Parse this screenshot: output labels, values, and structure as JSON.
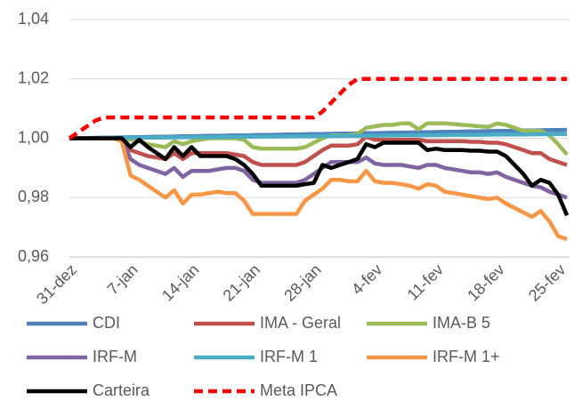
{
  "chart_data": {
    "type": "line",
    "categories": [
      "31-dez",
      null,
      null,
      null,
      null,
      null,
      null,
      "7-jan",
      null,
      null,
      null,
      null,
      null,
      null,
      "14-jan",
      null,
      null,
      null,
      null,
      null,
      null,
      "21-jan",
      null,
      null,
      null,
      null,
      null,
      null,
      "28-jan",
      null,
      null,
      null,
      null,
      null,
      null,
      "4-fev",
      null,
      null,
      null,
      null,
      null,
      null,
      "11-fev",
      null,
      null,
      null,
      null,
      null,
      null,
      "18-fev",
      null,
      null,
      null,
      null,
      null,
      null,
      "25-fev",
      null
    ],
    "ylim": [
      0.96,
      1.04
    ],
    "yticks": [
      {
        "value": 0.96,
        "label": "0,96"
      },
      {
        "value": 0.98,
        "label": "0,98"
      },
      {
        "value": 1.0,
        "label": "1,00"
      },
      {
        "value": 1.02,
        "label": "1,02"
      },
      {
        "value": 1.04,
        "label": "1,04"
      }
    ],
    "grid": true,
    "legend": "bottom",
    "series": [
      {
        "name": "CDI",
        "color": "#4f81bd",
        "values": [
          1.0,
          1.00005,
          1.0001,
          1.00015,
          1.0002,
          1.00025,
          1.0003,
          1.00035,
          1.0004,
          1.00045,
          1.0005,
          1.00055,
          1.0006,
          1.00065,
          1.0007,
          1.00075,
          1.0008,
          1.00085,
          1.0009,
          1.00095,
          1.001,
          1.00105,
          1.0011,
          1.00115,
          1.0012,
          1.00125,
          1.0013,
          1.00135,
          1.0014,
          1.00145,
          1.0015,
          1.00155,
          1.0016,
          1.00165,
          1.0017,
          1.00175,
          1.0018,
          1.00185,
          1.0019,
          1.00195,
          1.002,
          1.00205,
          1.0021,
          1.00215,
          1.0022,
          1.00225,
          1.0023,
          1.00235,
          1.0024,
          1.00245,
          1.0025,
          1.00255,
          1.0026,
          1.00265,
          1.0027,
          1.00275,
          1.0028,
          1.00285
        ]
      },
      {
        "name": "IMA - Geral",
        "color": "#c0504d",
        "values": [
          1.0,
          1.0,
          1.0,
          1.0,
          1.0,
          1.0,
          1.0,
          0.996,
          0.995,
          0.994,
          0.9935,
          0.993,
          0.995,
          0.993,
          0.995,
          0.995,
          0.995,
          0.995,
          0.995,
          0.9945,
          0.994,
          0.992,
          0.991,
          0.991,
          0.991,
          0.991,
          0.991,
          0.992,
          0.994,
          0.996,
          0.9975,
          0.9975,
          0.9975,
          0.998,
          1.0005,
          0.9995,
          0.9995,
          0.9995,
          0.9995,
          0.9995,
          0.9995,
          0.999,
          0.999,
          0.999,
          0.999,
          0.999,
          0.9988,
          0.9988,
          0.9985,
          0.9985,
          0.998,
          0.997,
          0.996,
          0.995,
          0.995,
          0.993,
          0.992,
          0.991
        ]
      },
      {
        "name": "IMA-B 5",
        "color": "#9bbb59",
        "values": [
          1.0,
          1.0,
          1.0,
          1.0,
          1.0,
          1.0,
          1.0,
          0.9995,
          0.999,
          0.998,
          0.9975,
          0.997,
          0.999,
          0.998,
          0.999,
          0.9995,
          1.0,
          1.0,
          1.0,
          1.0,
          0.9995,
          0.997,
          0.9965,
          0.9965,
          0.9965,
          0.9965,
          0.9965,
          0.997,
          0.9985,
          1.0,
          1.001,
          1.001,
          1.001,
          1.0015,
          1.0035,
          1.004,
          1.0045,
          1.0045,
          1.005,
          1.005,
          1.003,
          1.005,
          1.005,
          1.005,
          1.0048,
          1.0045,
          1.0043,
          1.004,
          1.0038,
          1.005,
          1.0045,
          1.0035,
          1.0025,
          1.0025,
          1.0025,
          1.001,
          0.998,
          0.9945
        ]
      },
      {
        "name": "IRF-M",
        "color": "#8064a2",
        "values": [
          1.0,
          1.0,
          1.0,
          1.0,
          1.0,
          1.0,
          1.0,
          0.993,
          0.991,
          0.99,
          0.989,
          0.988,
          0.99,
          0.987,
          0.989,
          0.989,
          0.989,
          0.9895,
          0.99,
          0.99,
          0.989,
          0.986,
          0.985,
          0.985,
          0.985,
          0.985,
          0.985,
          0.986,
          0.988,
          0.99,
          0.992,
          0.992,
          0.992,
          0.992,
          0.9935,
          0.9915,
          0.991,
          0.991,
          0.991,
          0.9905,
          0.99,
          0.991,
          0.991,
          0.99,
          0.9895,
          0.989,
          0.9885,
          0.9885,
          0.988,
          0.9885,
          0.987,
          0.986,
          0.985,
          0.984,
          0.9835,
          0.982,
          0.981,
          0.98
        ]
      },
      {
        "name": "IRF-M 1",
        "color": "#4bacc6",
        "values": [
          1.0,
          1.00003,
          1.00005,
          1.00008,
          1.0001,
          1.00013,
          1.00015,
          1.00018,
          1.0002,
          1.00023,
          1.00025,
          1.00028,
          1.0003,
          1.00033,
          1.00035,
          1.00038,
          1.0004,
          1.00043,
          1.00045,
          1.00048,
          1.0005,
          1.00053,
          1.00055,
          1.00058,
          1.0006,
          1.00063,
          1.00065,
          1.00068,
          1.0007,
          1.00073,
          1.00075,
          1.00078,
          1.0008,
          1.00083,
          1.00085,
          1.00088,
          1.0009,
          1.00093,
          1.00095,
          1.00098,
          1.001,
          1.00103,
          1.00105,
          1.00108,
          1.0011,
          1.00113,
          1.00115,
          1.00118,
          1.0012,
          1.00123,
          1.00125,
          1.00128,
          1.0013,
          1.00133,
          1.00135,
          1.00138,
          1.0014,
          1.00143
        ]
      },
      {
        "name": "IRF-M 1+",
        "color": "#f79646",
        "values": [
          1.0,
          1.0,
          1.0,
          1.0,
          1.0,
          1.0,
          0.999,
          0.9875,
          0.986,
          0.984,
          0.982,
          0.98,
          0.9825,
          0.978,
          0.981,
          0.981,
          0.9815,
          0.982,
          0.9815,
          0.9815,
          0.979,
          0.9745,
          0.9745,
          0.9745,
          0.9745,
          0.9745,
          0.9745,
          0.979,
          0.981,
          0.983,
          0.986,
          0.986,
          0.9855,
          0.9855,
          0.989,
          0.9855,
          0.985,
          0.985,
          0.9845,
          0.984,
          0.983,
          0.9845,
          0.984,
          0.982,
          0.9815,
          0.981,
          0.9805,
          0.98,
          0.9795,
          0.98,
          0.978,
          0.9765,
          0.975,
          0.9735,
          0.9755,
          0.972,
          0.967,
          0.966
        ]
      },
      {
        "name": "Carteira",
        "color": "#000000",
        "values": [
          1.0,
          1.0,
          1.0,
          1.0,
          1.0,
          1.0,
          1.0,
          0.997,
          0.9995,
          0.997,
          0.995,
          0.993,
          0.997,
          0.994,
          0.997,
          0.994,
          0.994,
          0.994,
          0.994,
          0.993,
          0.991,
          0.988,
          0.984,
          0.984,
          0.984,
          0.984,
          0.984,
          0.9845,
          0.985,
          0.991,
          0.99,
          0.991,
          0.992,
          0.993,
          0.998,
          0.997,
          0.9985,
          0.9985,
          0.9985,
          0.9985,
          0.9985,
          0.996,
          0.9965,
          0.996,
          0.996,
          0.996,
          0.9958,
          0.9958,
          0.9955,
          0.9955,
          0.994,
          0.991,
          0.988,
          0.984,
          0.986,
          0.985,
          0.981,
          0.974
        ]
      },
      {
        "name": "Meta IPCA",
        "color": "#ff0000",
        "dashed": true,
        "values": [
          1.0,
          1.002,
          1.004,
          1.006,
          1.007,
          1.007,
          1.007,
          1.007,
          1.007,
          1.007,
          1.007,
          1.007,
          1.007,
          1.007,
          1.007,
          1.007,
          1.007,
          1.007,
          1.007,
          1.007,
          1.007,
          1.007,
          1.007,
          1.007,
          1.007,
          1.007,
          1.007,
          1.007,
          1.007,
          1.009,
          1.012,
          1.015,
          1.018,
          1.02,
          1.02,
          1.02,
          1.02,
          1.02,
          1.02,
          1.02,
          1.02,
          1.02,
          1.02,
          1.02,
          1.02,
          1.02,
          1.02,
          1.02,
          1.02,
          1.02,
          1.02,
          1.02,
          1.02,
          1.02,
          1.02,
          1.02,
          1.02,
          1.02
        ]
      }
    ]
  }
}
